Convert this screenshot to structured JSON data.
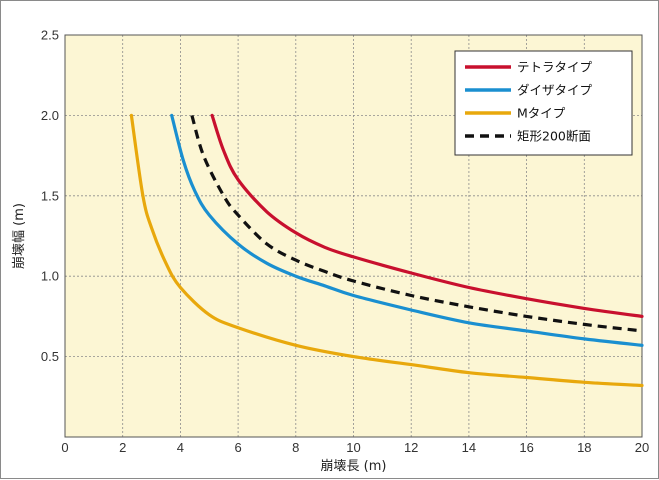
{
  "chart_data": {
    "type": "line",
    "xlabel": "崩壊長 (m)",
    "ylabel": "崩壊幅 (m)",
    "xlim": [
      0,
      20
    ],
    "ylim": [
      0,
      2.5
    ],
    "xticks": [
      0,
      2,
      4,
      6,
      8,
      10,
      12,
      14,
      16,
      18,
      20
    ],
    "yticks": [
      0.5,
      1.0,
      1.5,
      2.0,
      2.5
    ],
    "xtick_labels": [
      "0",
      "2",
      "4",
      "6",
      "8",
      "10",
      "12",
      "14",
      "16",
      "18",
      "20"
    ],
    "ytick_labels": [
      "0.5",
      "1.0",
      "1.5",
      "2.0",
      "2.5"
    ],
    "grid": true,
    "legend_position": "top-right",
    "series": [
      {
        "name": "テトラタイプ",
        "color": "#c8102e",
        "dash": "solid",
        "x": [
          5.1,
          5.5,
          6,
          7,
          8,
          9,
          10,
          12,
          14,
          16,
          18,
          20
        ],
        "y": [
          2.0,
          1.78,
          1.6,
          1.4,
          1.27,
          1.18,
          1.12,
          1.02,
          0.93,
          0.86,
          0.8,
          0.75
        ]
      },
      {
        "name": "ダイザタイプ",
        "color": "#1a8fd0",
        "dash": "solid",
        "x": [
          3.7,
          4.1,
          4.5,
          5,
          6,
          7,
          8,
          9,
          10,
          12,
          14,
          16,
          18,
          20
        ],
        "y": [
          2.0,
          1.72,
          1.53,
          1.38,
          1.2,
          1.08,
          1.0,
          0.94,
          0.88,
          0.79,
          0.71,
          0.66,
          0.61,
          0.57
        ]
      },
      {
        "name": "Mタイプ",
        "color": "#e8a80c",
        "dash": "solid",
        "x": [
          2.3,
          2.7,
          3,
          3.5,
          4,
          5,
          6,
          8,
          10,
          12,
          14,
          16,
          18,
          20
        ],
        "y": [
          2.0,
          1.5,
          1.3,
          1.08,
          0.93,
          0.76,
          0.68,
          0.57,
          0.5,
          0.45,
          0.4,
          0.37,
          0.34,
          0.32
        ]
      },
      {
        "name": "矩形200断面",
        "color": "#111111",
        "dash": "dashed",
        "x": [
          4.4,
          4.8,
          5.5,
          6,
          7,
          8,
          9,
          10,
          12,
          14,
          16,
          18,
          20
        ],
        "y": [
          2.0,
          1.75,
          1.5,
          1.38,
          1.2,
          1.1,
          1.03,
          0.97,
          0.88,
          0.81,
          0.75,
          0.7,
          0.66
        ]
      }
    ]
  }
}
